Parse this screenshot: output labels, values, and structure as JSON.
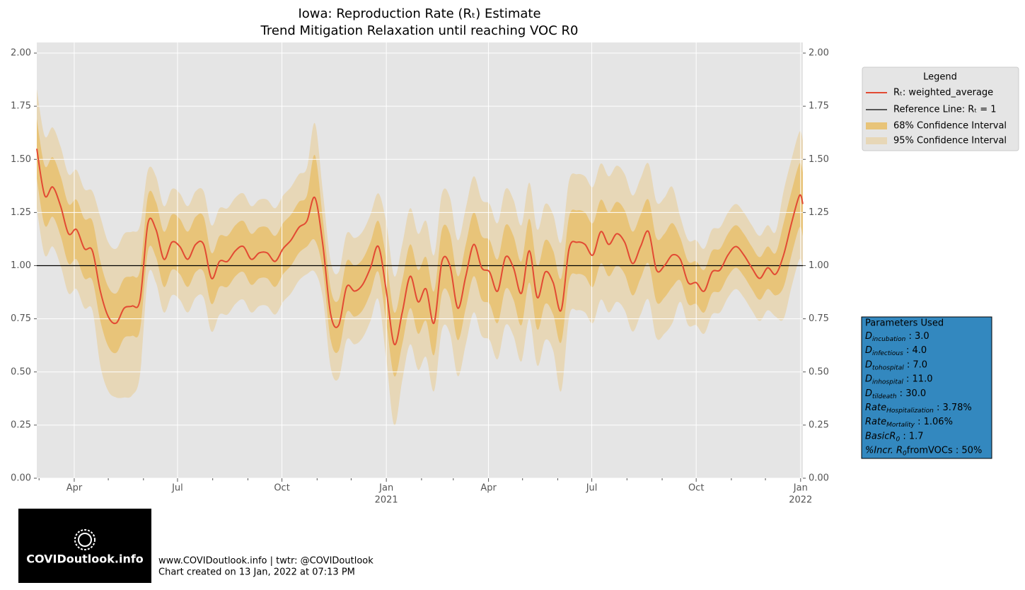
{
  "chart_data": {
    "type": "line",
    "title": "Iowa: Reproduction Rate (Rₜ) Estimate",
    "subtitle": "Trend Mitigation Relaxation until reaching VOC R0",
    "x": [
      "2020-02-28",
      "2020-03-06",
      "2020-03-13",
      "2020-03-20",
      "2020-03-27",
      "2020-04-03",
      "2020-04-10",
      "2020-04-17",
      "2020-04-24",
      "2020-05-01",
      "2020-05-08",
      "2020-05-15",
      "2020-05-22",
      "2020-05-29",
      "2020-06-05",
      "2020-06-12",
      "2020-06-19",
      "2020-06-26",
      "2020-07-03",
      "2020-07-10",
      "2020-07-17",
      "2020-07-24",
      "2020-07-31",
      "2020-08-07",
      "2020-08-14",
      "2020-08-21",
      "2020-08-28",
      "2020-09-04",
      "2020-09-11",
      "2020-09-18",
      "2020-09-25",
      "2020-10-02",
      "2020-10-09",
      "2020-10-16",
      "2020-10-23",
      "2020-10-30",
      "2020-11-06",
      "2020-11-13",
      "2020-11-20",
      "2020-11-27",
      "2020-12-04",
      "2020-12-11",
      "2020-12-18",
      "2020-12-25",
      "2021-01-01",
      "2021-01-08",
      "2021-01-15",
      "2021-01-22",
      "2021-01-29",
      "2021-02-05",
      "2021-02-12",
      "2021-02-19",
      "2021-02-26",
      "2021-03-05",
      "2021-03-12",
      "2021-03-19",
      "2021-03-26",
      "2021-04-02",
      "2021-04-09",
      "2021-04-16",
      "2021-04-23",
      "2021-04-30",
      "2021-05-07",
      "2021-05-14",
      "2021-05-21",
      "2021-05-28",
      "2021-06-04",
      "2021-06-11",
      "2021-06-18",
      "2021-06-25",
      "2021-07-02",
      "2021-07-09",
      "2021-07-16",
      "2021-07-23",
      "2021-07-30",
      "2021-08-06",
      "2021-08-13",
      "2021-08-20",
      "2021-08-27",
      "2021-09-03",
      "2021-09-10",
      "2021-09-17",
      "2021-09-24",
      "2021-10-01",
      "2021-10-08",
      "2021-10-15",
      "2021-10-22",
      "2021-10-29",
      "2021-11-05",
      "2021-11-12",
      "2021-11-19",
      "2021-11-26",
      "2021-12-03",
      "2021-12-10",
      "2021-12-17",
      "2021-12-24",
      "2021-12-31",
      "2022-01-03"
    ],
    "series": [
      {
        "name": "Rₜ: weighted_average",
        "color": "#e24a33",
        "values": [
          1.55,
          1.33,
          1.37,
          1.28,
          1.15,
          1.17,
          1.08,
          1.07,
          0.88,
          0.76,
          0.73,
          0.8,
          0.81,
          0.84,
          1.2,
          1.17,
          1.03,
          1.11,
          1.09,
          1.03,
          1.1,
          1.1,
          0.94,
          1.02,
          1.02,
          1.07,
          1.09,
          1.03,
          1.06,
          1.06,
          1.02,
          1.08,
          1.12,
          1.18,
          1.21,
          1.32,
          1.1,
          0.77,
          0.72,
          0.9,
          0.88,
          0.91,
          0.99,
          1.09,
          0.88,
          0.63,
          0.78,
          0.95,
          0.83,
          0.89,
          0.73,
          1.02,
          1.0,
          0.8,
          0.95,
          1.1,
          0.99,
          0.97,
          0.88,
          1.04,
          0.99,
          0.87,
          1.07,
          0.85,
          0.97,
          0.92,
          0.79,
          1.08,
          1.11,
          1.1,
          1.05,
          1.16,
          1.1,
          1.15,
          1.11,
          1.01,
          1.09,
          1.16,
          0.98,
          1.0,
          1.05,
          1.03,
          0.92,
          0.92,
          0.88,
          0.97,
          0.98,
          1.05,
          1.09,
          1.05,
          0.99,
          0.94,
          0.99,
          0.96,
          1.05,
          1.2,
          1.33,
          1.29
        ]
      }
    ],
    "bands": [
      {
        "name": "68% Confidence Interval",
        "color": "#e8c479",
        "upper": [
          1.69,
          1.47,
          1.51,
          1.42,
          1.29,
          1.31,
          1.22,
          1.21,
          1.02,
          0.9,
          0.87,
          0.94,
          0.95,
          0.98,
          1.33,
          1.3,
          1.16,
          1.24,
          1.22,
          1.16,
          1.23,
          1.23,
          1.06,
          1.14,
          1.14,
          1.19,
          1.21,
          1.15,
          1.18,
          1.18,
          1.14,
          1.2,
          1.24,
          1.3,
          1.33,
          1.52,
          1.22,
          0.89,
          0.84,
          1.02,
          1.0,
          1.03,
          1.11,
          1.21,
          1.03,
          0.78,
          0.93,
          1.1,
          0.98,
          1.04,
          0.88,
          1.17,
          1.15,
          0.95,
          1.1,
          1.25,
          1.14,
          1.12,
          1.03,
          1.19,
          1.14,
          1.02,
          1.22,
          1.0,
          1.12,
          1.07,
          0.94,
          1.23,
          1.26,
          1.25,
          1.2,
          1.31,
          1.25,
          1.3,
          1.26,
          1.16,
          1.24,
          1.31,
          1.13,
          1.15,
          1.2,
          1.13,
          1.02,
          1.02,
          0.98,
          1.07,
          1.08,
          1.15,
          1.19,
          1.15,
          1.09,
          1.04,
          1.09,
          1.06,
          1.2,
          1.35,
          1.48,
          1.44
        ],
        "lower": [
          1.41,
          1.19,
          1.23,
          1.14,
          1.01,
          1.03,
          0.94,
          0.93,
          0.74,
          0.62,
          0.59,
          0.66,
          0.67,
          0.7,
          1.07,
          1.04,
          0.9,
          0.98,
          0.96,
          0.9,
          0.97,
          0.97,
          0.82,
          0.9,
          0.9,
          0.95,
          0.97,
          0.91,
          0.94,
          0.94,
          0.9,
          0.96,
          1.0,
          1.06,
          1.09,
          1.12,
          0.98,
          0.65,
          0.6,
          0.78,
          0.76,
          0.79,
          0.87,
          0.97,
          0.73,
          0.48,
          0.63,
          0.8,
          0.68,
          0.74,
          0.58,
          0.87,
          0.85,
          0.65,
          0.8,
          0.95,
          0.84,
          0.82,
          0.73,
          0.89,
          0.84,
          0.72,
          0.92,
          0.7,
          0.82,
          0.77,
          0.64,
          0.93,
          0.96,
          0.95,
          0.9,
          1.01,
          0.95,
          1.0,
          0.96,
          0.86,
          0.94,
          1.01,
          0.83,
          0.85,
          0.9,
          0.93,
          0.82,
          0.82,
          0.78,
          0.87,
          0.88,
          0.95,
          0.99,
          0.95,
          0.89,
          0.84,
          0.89,
          0.86,
          0.9,
          1.05,
          1.18,
          1.14
        ]
      },
      {
        "name": "95% Confidence Interval",
        "color": "#e7d7b7",
        "upper": [
          1.83,
          1.61,
          1.65,
          1.56,
          1.43,
          1.45,
          1.36,
          1.35,
          1.23,
          1.11,
          1.08,
          1.15,
          1.16,
          1.19,
          1.45,
          1.42,
          1.28,
          1.36,
          1.34,
          1.28,
          1.35,
          1.35,
          1.19,
          1.27,
          1.27,
          1.32,
          1.34,
          1.28,
          1.31,
          1.31,
          1.27,
          1.33,
          1.37,
          1.43,
          1.46,
          1.67,
          1.35,
          1.02,
          0.97,
          1.15,
          1.13,
          1.16,
          1.24,
          1.34,
          1.2,
          0.95,
          1.1,
          1.27,
          1.15,
          1.21,
          1.05,
          1.34,
          1.32,
          1.12,
          1.27,
          1.42,
          1.31,
          1.29,
          1.2,
          1.36,
          1.31,
          1.19,
          1.39,
          1.17,
          1.29,
          1.24,
          1.11,
          1.4,
          1.43,
          1.42,
          1.37,
          1.48,
          1.42,
          1.47,
          1.43,
          1.33,
          1.41,
          1.48,
          1.3,
          1.32,
          1.37,
          1.23,
          1.12,
          1.12,
          1.08,
          1.17,
          1.18,
          1.25,
          1.29,
          1.25,
          1.19,
          1.14,
          1.19,
          1.16,
          1.35,
          1.5,
          1.63,
          1.59
        ],
        "lower": [
          1.27,
          1.05,
          1.09,
          1.0,
          0.87,
          0.89,
          0.8,
          0.79,
          0.53,
          0.41,
          0.38,
          0.38,
          0.39,
          0.49,
          0.95,
          0.92,
          0.78,
          0.86,
          0.84,
          0.78,
          0.85,
          0.85,
          0.69,
          0.77,
          0.77,
          0.82,
          0.84,
          0.78,
          0.81,
          0.81,
          0.77,
          0.83,
          0.87,
          0.93,
          0.96,
          0.97,
          0.85,
          0.52,
          0.47,
          0.65,
          0.63,
          0.66,
          0.74,
          0.84,
          0.56,
          0.25,
          0.46,
          0.63,
          0.51,
          0.57,
          0.41,
          0.7,
          0.68,
          0.48,
          0.63,
          0.78,
          0.67,
          0.65,
          0.56,
          0.72,
          0.67,
          0.55,
          0.75,
          0.53,
          0.65,
          0.6,
          0.41,
          0.76,
          0.79,
          0.78,
          0.73,
          0.84,
          0.78,
          0.83,
          0.79,
          0.69,
          0.77,
          0.84,
          0.66,
          0.68,
          0.73,
          0.83,
          0.72,
          0.72,
          0.68,
          0.77,
          0.78,
          0.85,
          0.89,
          0.85,
          0.79,
          0.74,
          0.79,
          0.76,
          0.75,
          0.9,
          1.03,
          0.99
        ]
      }
    ],
    "reference_line": {
      "name": "Reference Line: Rₜ = 1",
      "value": 1,
      "color": "#000000"
    },
    "legend_title": "Legend",
    "legend": "upper right",
    "grid": true,
    "xlim": [
      "2020-02-28",
      "2022-01-03"
    ],
    "xticks": [
      {
        "value": "2020-04-01",
        "label": "Apr"
      },
      {
        "value": "2020-07-01",
        "label": "Jul"
      },
      {
        "value": "2020-10-01",
        "label": "Oct"
      },
      {
        "value": "2021-01-01",
        "label": "Jan"
      },
      {
        "value": "2021-04-01",
        "label": "Apr"
      },
      {
        "value": "2021-07-01",
        "label": "Jul"
      },
      {
        "value": "2021-10-01",
        "label": "Oct"
      },
      {
        "value": "2022-01-01",
        "label": "Jan"
      }
    ],
    "year_labels": [
      {
        "value": "2021-01-01",
        "label": "2021"
      },
      {
        "value": "2022-01-01",
        "label": "2022"
      }
    ],
    "xminorticks": [
      "2020-03-01",
      "2020-05-01",
      "2020-06-01",
      "2020-08-01",
      "2020-09-01",
      "2020-11-01",
      "2020-12-01",
      "2021-02-01",
      "2021-03-01",
      "2021-05-01",
      "2021-06-01",
      "2021-08-01",
      "2021-09-01",
      "2021-11-01",
      "2021-12-01"
    ],
    "ylim": [
      0,
      2.05
    ],
    "yticks": [
      {
        "value": 0,
        "label": "0.00"
      },
      {
        "value": 0.25,
        "label": "0.25"
      },
      {
        "value": 0.5,
        "label": "0.50"
      },
      {
        "value": 0.75,
        "label": "0.75"
      },
      {
        "value": 1,
        "label": "1.00"
      },
      {
        "value": 1.25,
        "label": "1.25"
      },
      {
        "value": 1.5,
        "label": "1.50"
      },
      {
        "value": 1.75,
        "label": "1.75"
      },
      {
        "value": 2,
        "label": "2.00"
      }
    ],
    "y2lim": [
      0,
      2.05
    ],
    "y2ticks": [
      {
        "value": 0,
        "label": "0.00"
      },
      {
        "value": 0.25,
        "label": "0.25"
      },
      {
        "value": 0.5,
        "label": "0.50"
      },
      {
        "value": 0.75,
        "label": "0.75"
      },
      {
        "value": 1,
        "label": "1.00"
      },
      {
        "value": 1.25,
        "label": "1.25"
      },
      {
        "value": 1.5,
        "label": "1.50"
      },
      {
        "value": 1.75,
        "label": "1.75"
      },
      {
        "value": 2,
        "label": "2.00"
      }
    ]
  },
  "parameters": {
    "title": "Parameters Used",
    "color": "#3388bf",
    "items": [
      {
        "base": "D",
        "sub": "incubation",
        "value": " : 3.0"
      },
      {
        "base": "D",
        "sub": "infectious",
        "value": " : 4.0"
      },
      {
        "base": "D",
        "sub": "tohospital",
        "value": " : 7.0"
      },
      {
        "base": "D",
        "sub": "inhospital",
        "value": " : 11.0"
      },
      {
        "base": "D",
        "sub": "tildeath",
        "value": " : 30.0"
      },
      {
        "base": "Rate",
        "sub": "Hospitalization",
        "value": " : 3.78%"
      },
      {
        "base": "Rate",
        "sub": "Mortality",
        "value": " : 1.06%"
      },
      {
        "base": "BasicR",
        "sub": "0",
        "value": " : 1.7"
      },
      {
        "base": "%Incr. R",
        "sub": "0",
        "value": "fromVOCs : 50%"
      }
    ]
  },
  "logo_text": "COVIDoutlook.info",
  "footer": [
    "www.COVIDoutlook.info | twtr: @COVIDoutlook",
    "Chart created on 13 Jan, 2022 at 07:13 PM"
  ]
}
